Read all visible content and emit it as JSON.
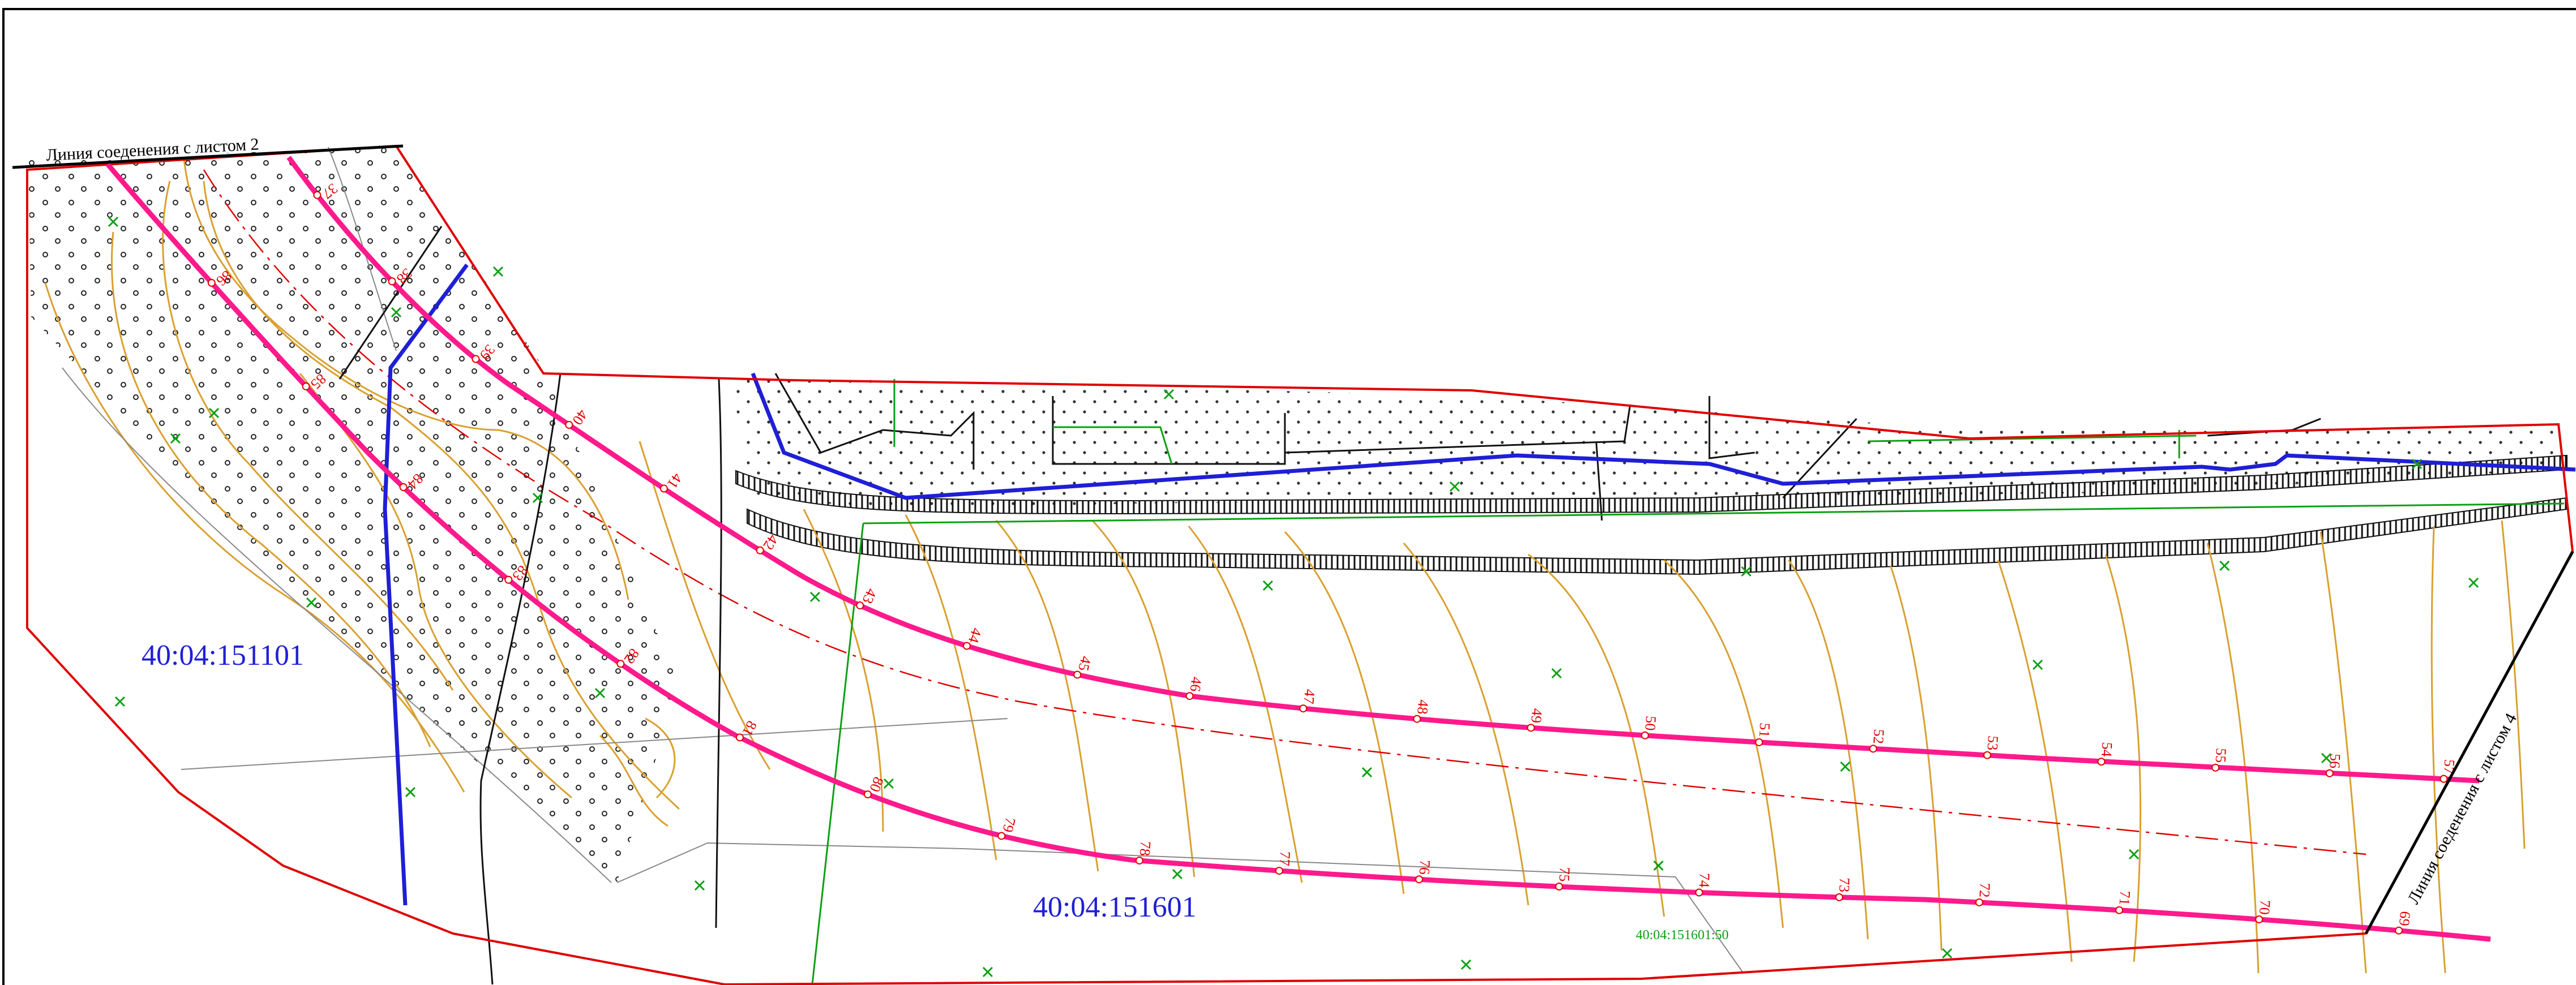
{
  "labels": {
    "sheet2_connection": "Линия соеденения с листом 2",
    "sheet4_connection": "Линия соеденения с листом 4",
    "parcel_left": "40:04:151101",
    "parcel_center": "40:04:151601",
    "parcel_sub": "40:04:151601:50"
  },
  "upper_line_pickets": [
    "37",
    "38",
    "39",
    "40",
    "41",
    "42",
    "43",
    "44",
    "45",
    "46",
    "47",
    "48",
    "49",
    "50",
    "51",
    "52",
    "53",
    "54",
    "55",
    "56",
    "57"
  ],
  "lower_line_pickets": [
    "86",
    "85",
    "84",
    "83",
    "82",
    "81",
    "80",
    "79",
    "78",
    "77",
    "76",
    "75",
    "74",
    "73",
    "72",
    "71",
    "70",
    "69"
  ],
  "upper_line_pickets_alt": [
    "36"
  ],
  "colors": {
    "boundary": "#e00000",
    "pipeline": "#ff1a8c",
    "blue_line": "#1f1fd6",
    "contour": "#d9a030",
    "green_line": "#0aa012",
    "frame": "#000000"
  }
}
